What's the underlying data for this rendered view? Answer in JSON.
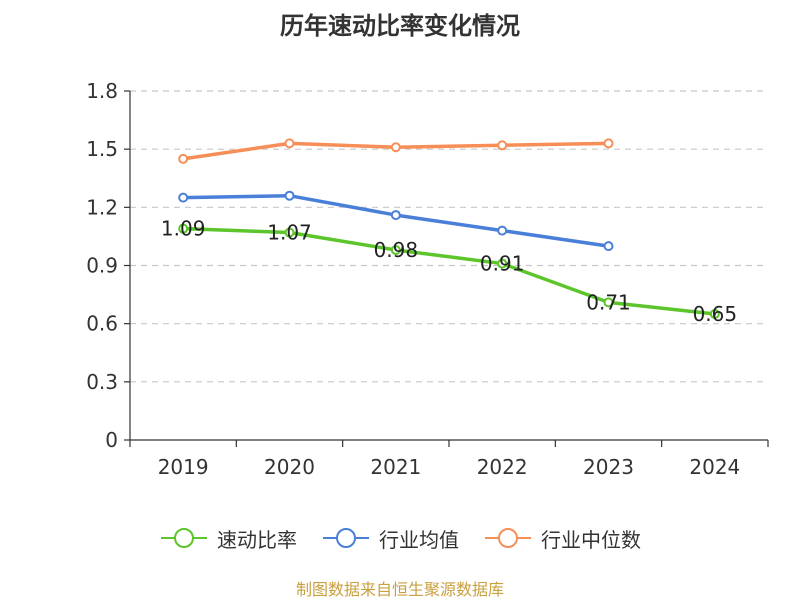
{
  "chart_data": {
    "type": "line",
    "title": "历年速动比率变化情况",
    "categories": [
      "2019",
      "2020",
      "2021",
      "2022",
      "2023",
      "2024"
    ],
    "ylim": [
      0,
      1.8
    ],
    "yticks": [
      "0",
      "0.3",
      "0.6",
      "0.9",
      "1.2",
      "1.5",
      "1.8"
    ],
    "grid": true,
    "legend_position": "bottom",
    "series": [
      {
        "name": "速动比率",
        "color": "#5cc52b",
        "values": [
          1.09,
          1.07,
          0.98,
          0.91,
          0.71,
          0.65
        ],
        "labels": [
          "1.09",
          "1.07",
          "0.98",
          "0.91",
          "0.71",
          "0.65"
        ]
      },
      {
        "name": "行业均值",
        "color": "#4a7fd9",
        "values": [
          1.25,
          1.26,
          1.16,
          1.08,
          1.0,
          null
        ]
      },
      {
        "name": "行业中位数",
        "color": "#f78e58",
        "values": [
          1.45,
          1.53,
          1.51,
          1.52,
          1.53,
          null
        ]
      }
    ]
  },
  "source_note": "制图数据来自恒生聚源数据库"
}
